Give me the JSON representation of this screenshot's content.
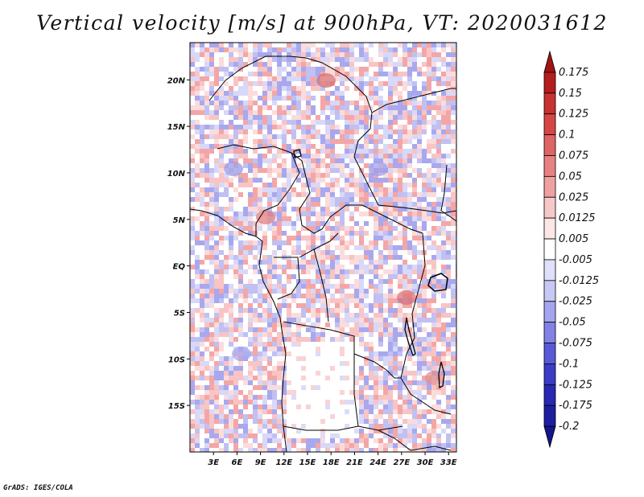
{
  "title": "Vertical velocity [m/s] at 900hPa, VT: 2020031612",
  "credit": "GrADS: IGES/COLA",
  "map": {
    "lon_range": [
      0,
      34
    ],
    "lat_range": [
      -20,
      24
    ],
    "x_ticks": [
      {
        "value": 3,
        "label": "3E"
      },
      {
        "value": 6,
        "label": "6E"
      },
      {
        "value": 9,
        "label": "9E"
      },
      {
        "value": 12,
        "label": "12E"
      },
      {
        "value": 15,
        "label": "15E"
      },
      {
        "value": 18,
        "label": "18E"
      },
      {
        "value": 21,
        "label": "21E"
      },
      {
        "value": 24,
        "label": "24E"
      },
      {
        "value": 27,
        "label": "27E"
      },
      {
        "value": 30,
        "label": "30E"
      },
      {
        "value": 33,
        "label": "33E"
      }
    ],
    "y_ticks": [
      {
        "value": 20,
        "label": "20N"
      },
      {
        "value": 15,
        "label": "15N"
      },
      {
        "value": 10,
        "label": "10N"
      },
      {
        "value": 5,
        "label": "5N"
      },
      {
        "value": 0,
        "label": "EQ"
      },
      {
        "value": -5,
        "label": "5S"
      },
      {
        "value": -10,
        "label": "10S"
      },
      {
        "value": -15,
        "label": "15S"
      }
    ]
  },
  "colorbar": {
    "labels": [
      "0.175",
      "0.15",
      "0.125",
      "0.1",
      "0.075",
      "0.05",
      "0.025",
      "0.0125",
      "0.005",
      "-0.005",
      "-0.0125",
      "-0.025",
      "-0.05",
      "-0.075",
      "-0.1",
      "-0.125",
      "-0.175",
      "-0.2"
    ],
    "colors": [
      "#a01414",
      "#b41e1e",
      "#c83232",
      "#d74646",
      "#e06464",
      "#e88282",
      "#f0a0a0",
      "#f6c8c8",
      "#fce6e6",
      "#ffffff",
      "#e0e0fa",
      "#c8c8f5",
      "#a5a5ef",
      "#8282e6",
      "#5a5ad7",
      "#3c3cc8",
      "#2828b4",
      "#1e1ea0",
      "#14148c"
    ]
  }
}
